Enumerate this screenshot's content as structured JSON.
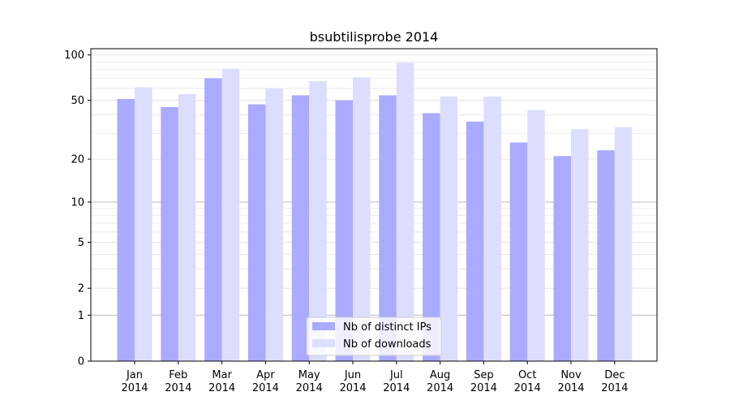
{
  "chart_data": {
    "type": "bar",
    "title": "bsubtilisprobe 2014",
    "xlabel": "",
    "ylabel": "",
    "y_scale": "log(1+y)",
    "grid": true,
    "legend_position": "bottom-center",
    "categories": [
      [
        "Jan",
        "2014"
      ],
      [
        "Feb",
        "2014"
      ],
      [
        "Mar",
        "2014"
      ],
      [
        "Apr",
        "2014"
      ],
      [
        "May",
        "2014"
      ],
      [
        "Jun",
        "2014"
      ],
      [
        "Jul",
        "2014"
      ],
      [
        "Aug",
        "2014"
      ],
      [
        "Sep",
        "2014"
      ],
      [
        "Oct",
        "2014"
      ],
      [
        "Nov",
        "2014"
      ],
      [
        "Dec",
        "2014"
      ]
    ],
    "y_ticks": [
      0,
      1,
      2,
      5,
      10,
      20,
      50,
      100
    ],
    "ylim": [
      0,
      110
    ],
    "series": [
      {
        "name": "Nb of distinct IPs",
        "color": "#aaaaff",
        "values": [
          51,
          45,
          70,
          47,
          54,
          50,
          54,
          41,
          36,
          26,
          21,
          23
        ]
      },
      {
        "name": "Nb of downloads",
        "color": "#ddddff",
        "values": [
          61,
          55,
          81,
          60,
          67,
          71,
          89,
          53,
          53,
          43,
          32,
          33
        ]
      }
    ]
  }
}
